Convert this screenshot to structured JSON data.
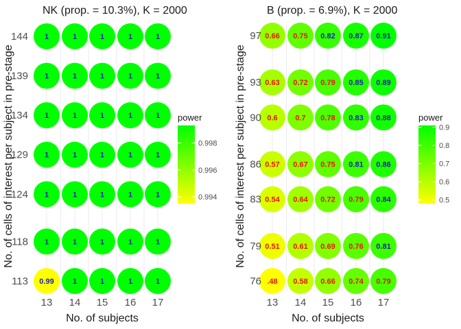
{
  "chart_data": [
    {
      "type": "heatmap",
      "title": "NK (prop. = 10.3%), K = 2000",
      "xlabel": "No. of subjects",
      "ylabel": "No. of cells of interest per subject in pre-stage",
      "x": [
        13,
        14,
        15,
        16,
        17
      ],
      "y": [
        113,
        118,
        124,
        129,
        134,
        139,
        144
      ],
      "values": [
        [
          0.99,
          1,
          1,
          1,
          1
        ],
        [
          1,
          1,
          1,
          1,
          1
        ],
        [
          1,
          1,
          1,
          1,
          1
        ],
        [
          1,
          1,
          1,
          1,
          1
        ],
        [
          1,
          1,
          1,
          1,
          1
        ],
        [
          1,
          1,
          1,
          1,
          1
        ],
        [
          1,
          1,
          1,
          1,
          1
        ]
      ],
      "point_labels": [
        [
          "0.99",
          "1",
          "1",
          "1",
          "1"
        ],
        [
          "1",
          "1",
          "1",
          "1",
          "1"
        ],
        [
          "1",
          "1",
          "1",
          "1",
          "1"
        ],
        [
          "1",
          "1",
          "1",
          "1",
          "1"
        ],
        [
          "1",
          "1",
          "1",
          "1",
          "1"
        ],
        [
          "1",
          "1",
          "1",
          "1",
          "1"
        ],
        [
          "1",
          "1",
          "1",
          "1",
          "1"
        ]
      ],
      "legend": {
        "title": "power",
        "range": [
          0.9935,
          0.9993
        ],
        "ticks": [
          0.994,
          0.996,
          0.998
        ],
        "tick_labels": [
          "0.994",
          "0.996",
          "0.998"
        ],
        "low_color": "#ffff00",
        "high_color": "#00ff00"
      },
      "grid": true
    },
    {
      "type": "heatmap",
      "title": "B (prop. = 6.9%), K = 2000",
      "xlabel": "No. of subjects",
      "ylabel": "No. of cells of interest per subject in pre-stage",
      "x": [
        13,
        14,
        15,
        16,
        17
      ],
      "y": [
        76,
        79,
        83,
        86,
        90,
        93,
        97
      ],
      "values": [
        [
          0.48,
          0.58,
          0.66,
          0.74,
          0.79
        ],
        [
          0.51,
          0.61,
          0.69,
          0.76,
          0.81
        ],
        [
          0.54,
          0.64,
          0.72,
          0.79,
          0.84
        ],
        [
          0.57,
          0.67,
          0.75,
          0.81,
          0.86
        ],
        [
          0.6,
          0.7,
          0.78,
          0.83,
          0.88
        ],
        [
          0.63,
          0.72,
          0.79,
          0.85,
          0.89
        ],
        [
          0.66,
          0.75,
          0.82,
          0.87,
          0.91
        ]
      ],
      "point_labels": [
        [
          ".48",
          "0.58",
          "0.66",
          "0.74",
          "0.79"
        ],
        [
          "0.51",
          "0.61",
          "0.69",
          "0.76",
          "0.81"
        ],
        [
          "0.54",
          "0.64",
          "0.72",
          "0.79",
          "0.84"
        ],
        [
          "0.57",
          "0.67",
          "0.75",
          "0.81",
          "0.86"
        ],
        [
          "0.6",
          "0.7",
          "0.78",
          "0.83",
          "0.88"
        ],
        [
          "0.63",
          "0.72",
          "0.79",
          "0.85",
          "0.89"
        ],
        [
          "0.66",
          "0.75",
          "0.82",
          "0.87",
          "0.91"
        ]
      ],
      "legend": {
        "title": "power",
        "range": [
          0.48,
          0.91
        ],
        "ticks": [
          0.5,
          0.6,
          0.7,
          0.8,
          0.9
        ],
        "tick_labels": [
          "0.5",
          "0.6",
          "0.7",
          "0.8",
          "0.9"
        ],
        "low_color": "#ffff00",
        "high_color": "#00ff00"
      },
      "grid": true,
      "label_colors": {
        "below_0.8": "#ee1111",
        "at_or_above_0.8": "#1e22aa"
      }
    }
  ]
}
